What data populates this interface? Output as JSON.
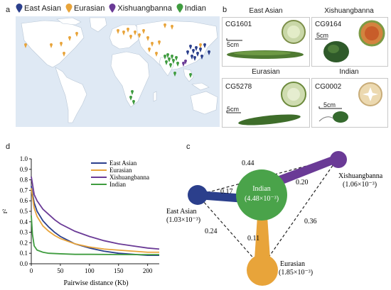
{
  "panels": {
    "a": "a",
    "b": "b",
    "c": "c",
    "d": "d"
  },
  "colors": {
    "east_asian": "#2b3f8c",
    "eurasian": "#e8a43a",
    "xishuangbanna": "#6a3a96",
    "indian": "#3f9c3f"
  },
  "legend": [
    {
      "label": "East Asian",
      "color": "#2b3f8c"
    },
    {
      "label": "Eurasian",
      "color": "#e8a43a"
    },
    {
      "label": "Xishuangbanna",
      "color": "#6a3a96"
    },
    {
      "label": "Indian",
      "color": "#3f9c3f"
    }
  ],
  "fruits": {
    "east_asian": {
      "title": "East Asian",
      "id": "CG1601",
      "scale": "5cm"
    },
    "xishuangbanna": {
      "title": "Xishuangbanna",
      "id": "CG9164",
      "scale": "5cm"
    },
    "eurasian": {
      "title": "Eurasian",
      "id": "CG5278",
      "scale": "5cm"
    },
    "indian": {
      "title": "Indian",
      "id": "CG0002",
      "scale": "5cm"
    }
  },
  "chart_data": {
    "type": "line",
    "xlabel": "Pairwise distance (Kb)",
    "ylabel": "r²",
    "xlim": [
      0,
      220
    ],
    "ylim": [
      0,
      1.0
    ],
    "x_ticks": [
      0,
      50,
      100,
      150,
      200
    ],
    "y_ticks": [
      "0.0",
      "0.1",
      "0.2",
      "0.3",
      "0.4",
      "0.5",
      "0.6",
      "0.7",
      "0.8",
      "0.9",
      "1.0"
    ],
    "legend_position": "top-right",
    "series": [
      {
        "name": "East Asian",
        "color": "#2b3f8c",
        "x": [
          0,
          5,
          10,
          20,
          30,
          40,
          50,
          75,
          100,
          125,
          150,
          175,
          200,
          220
        ],
        "y": [
          0.74,
          0.58,
          0.5,
          0.41,
          0.35,
          0.3,
          0.26,
          0.19,
          0.15,
          0.12,
          0.1,
          0.09,
          0.08,
          0.08
        ]
      },
      {
        "name": "Eurasian",
        "color": "#e8a43a",
        "x": [
          0,
          5,
          10,
          20,
          30,
          40,
          50,
          75,
          100,
          125,
          150,
          175,
          200,
          220
        ],
        "y": [
          0.72,
          0.53,
          0.45,
          0.36,
          0.31,
          0.27,
          0.24,
          0.19,
          0.16,
          0.14,
          0.13,
          0.12,
          0.11,
          0.11
        ]
      },
      {
        "name": "Xishuangbanna",
        "color": "#6a3a96",
        "x": [
          0,
          5,
          10,
          20,
          30,
          40,
          50,
          75,
          100,
          125,
          150,
          175,
          200,
          220
        ],
        "y": [
          0.83,
          0.66,
          0.6,
          0.52,
          0.47,
          0.42,
          0.38,
          0.31,
          0.26,
          0.22,
          0.19,
          0.17,
          0.15,
          0.14
        ]
      },
      {
        "name": "Indian",
        "color": "#3f9c3f",
        "x": [
          0,
          2,
          5,
          10,
          20,
          30,
          50,
          75,
          100,
          150,
          200,
          220
        ],
        "y": [
          0.46,
          0.28,
          0.17,
          0.13,
          0.11,
          0.1,
          0.095,
          0.09,
          0.09,
          0.088,
          0.087,
          0.087
        ]
      }
    ]
  },
  "network": {
    "nodes": {
      "east_asian": {
        "label": "East Asian",
        "value": "(1.03×10⁻³)"
      },
      "indian": {
        "label": "Indian",
        "value": "(4.48×10⁻³)"
      },
      "xishuangbanna": {
        "label": "Xishuangbanna",
        "value": "(1.06×10⁻³)"
      },
      "eurasian": {
        "label": "Eurasian",
        "value": "(1.85×10⁻³)"
      }
    },
    "edges": {
      "ea_xb": "0.44",
      "ea_in": "0.17",
      "xb_in": "0.20",
      "ea_eu": "0.24",
      "in_eu": "0.11",
      "xb_eu": "0.36"
    }
  }
}
